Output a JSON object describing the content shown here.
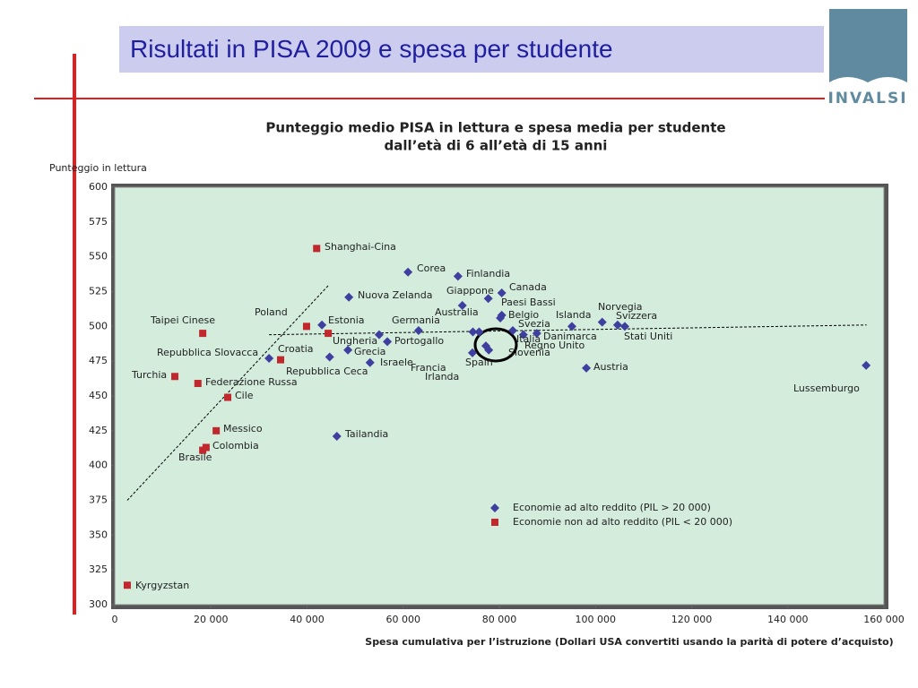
{
  "slide_title": "Risultati in PISA 2009 e spesa per studente",
  "logo": "INVALSI",
  "chart_data": {
    "type": "scatter",
    "title": "Punteggio medio PISA in lettura e spesa media per studente",
    "subtitle": "dall’età di 6 all’età di 15 anni",
    "y_label": "Punteggio in lettura",
    "x_label": "Spesa cumulativa per l’istruzione (Dollari USA convertiti usando la parità di potere d’acquisto)",
    "xlim": [
      0,
      160000
    ],
    "ylim": [
      300,
      600
    ],
    "xticks": [
      0,
      {
        "value": 20000,
        "label": "20 000"
      },
      {
        "value": 40000,
        "label": "40 000"
      },
      {
        "value": 60000,
        "label": "60 000"
      },
      {
        "value": 80000,
        "label": "80 000"
      },
      {
        "value": 100000,
        "label": "100 000"
      },
      {
        "value": 120000,
        "label": "120 000"
      },
      {
        "value": 140000,
        "label": "140 000"
      },
      {
        "value": 160000,
        "label": "160 000"
      }
    ],
    "yticks": [
      300,
      325,
      350,
      375,
      400,
      425,
      450,
      475,
      500,
      525,
      550,
      575,
      600
    ],
    "series": [
      {
        "name": "Economie ad alto reddito (PIL > 20 000)",
        "color": "#3f3f9f",
        "marker": "diamond",
        "labels": [
          "Corea",
          "Finlandia",
          "Canada",
          "Giappone",
          "Australia",
          "Paesi Bassi",
          "Belgio",
          "Nuova Zelanda",
          "Norvegia",
          "Islanda",
          "Svizzera",
          "Stati Uniti",
          "Svezia",
          "Danimarca",
          "Regno Unito",
          "Estonia",
          "Germania",
          "Ungheria",
          "Portogallo",
          "Italia",
          "Slovenia",
          "Francia",
          "Irlanda",
          "Spain",
          "Grecia",
          "Repubblica Slovacca",
          "Repubblica Ceca",
          "Israele",
          "Austria",
          "Lussemburgo",
          "Tailandia"
        ],
        "x": [
          61000,
          71400,
          80500,
          77700,
          72300,
          80500,
          80200,
          48700,
          101400,
          95100,
          104600,
          106100,
          82800,
          87800,
          85000,
          43100,
          63200,
          55000,
          56700,
          77200,
          77800,
          74500,
          75800,
          74400,
          48500,
          32100,
          44700,
          53100,
          98100,
          156300,
          46200
        ],
        "y": [
          539,
          536,
          524,
          520,
          515,
          508,
          506,
          521,
          503,
          500,
          501,
          500,
          497,
          495,
          494,
          501,
          497,
          494,
          489,
          486,
          483,
          496,
          496,
          481,
          483,
          477,
          478,
          474,
          470,
          472,
          421
        ]
      },
      {
        "name": "Economie non ad alto reddito (PIL < 20 000)",
        "color": "#c0282d",
        "marker": "square",
        "labels": [
          "Shanghai-Cina",
          "Taipei Cinese",
          "Poland",
          null,
          "Croatia",
          "Turchia",
          "Federazione Russa",
          "Cile",
          "Messico",
          "Colombia",
          "Brasile",
          "Kyrgyzstan"
        ],
        "x": [
          42000,
          18300,
          39900,
          44400,
          34500,
          12500,
          17300,
          23500,
          21100,
          19000,
          18300,
          2600
        ],
        "y": [
          556,
          495,
          500,
          495,
          476,
          464,
          459,
          449,
          425,
          413,
          411,
          314
        ]
      }
    ],
    "trend_lines": [
      {
        "x": [
          2600,
          44600
        ],
        "y": [
          375,
          530
        ]
      },
      {
        "x": [
          32100,
          156400
        ],
        "y": [
          494,
          501
        ]
      }
    ]
  }
}
